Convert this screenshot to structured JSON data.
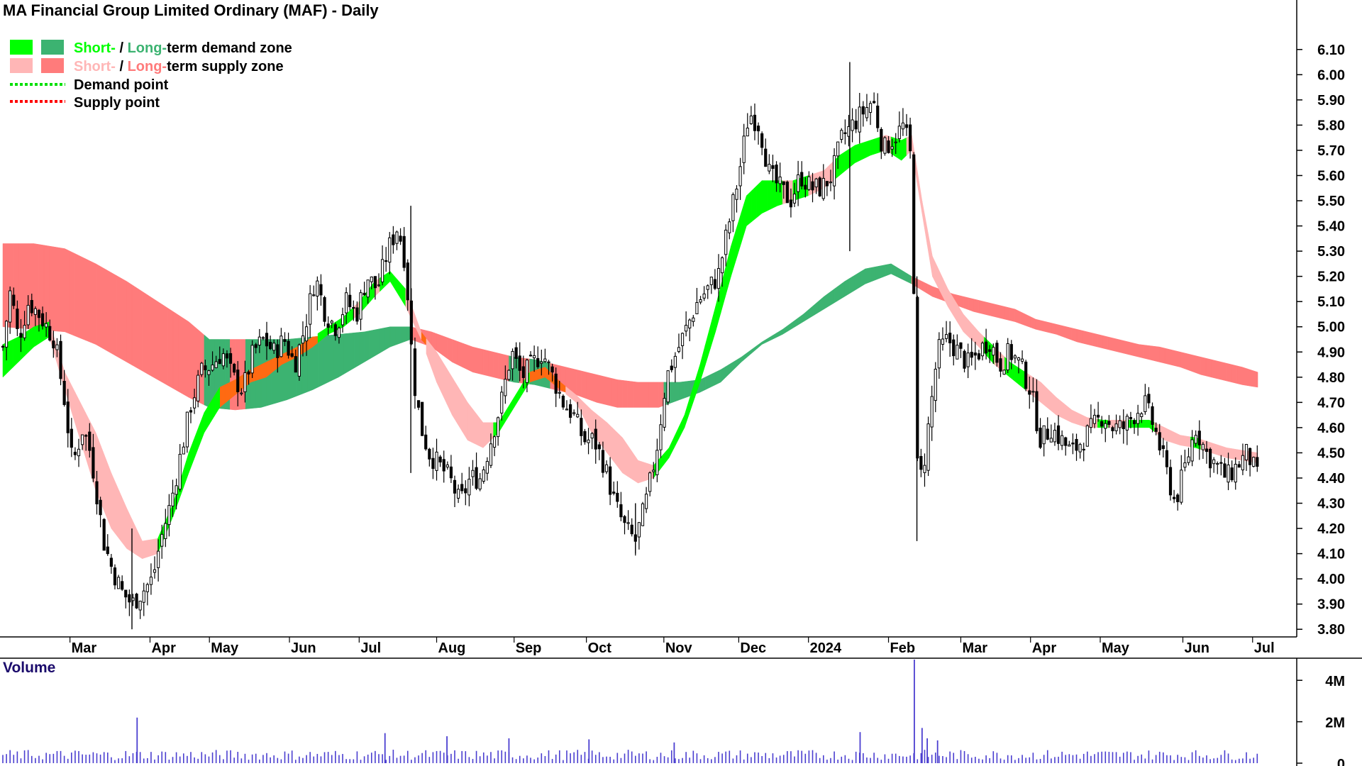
{
  "chart_data": {
    "type": "candlestick",
    "title": "MA Financial Group Limited Ordinary (MAF) - Daily",
    "legend": {
      "demand_zone": {
        "short_label": "Short-",
        "separator": " / ",
        "long_label": "Long-",
        "suffix": "term demand zone",
        "short_color": "#00ff00",
        "long_color": "#3cb371"
      },
      "supply_zone": {
        "short_label": "Short-",
        "separator": " / ",
        "long_label": "Long-",
        "suffix": "term supply zone",
        "short_color": "#ffb6b6",
        "long_color": "#ff7b7b"
      },
      "demand_point": {
        "label": "Demand point",
        "color": "#00e000"
      },
      "supply_point": {
        "label": "Supply point",
        "color": "#ff0000"
      },
      "placement": "top-left"
    },
    "price_axis": {
      "side": "right",
      "ticks": [
        "6.10",
        "6.00",
        "5.90",
        "5.80",
        "5.70",
        "5.60",
        "5.50",
        "5.40",
        "5.30",
        "5.20",
        "5.10",
        "5.00",
        "4.90",
        "4.80",
        "4.70",
        "4.60",
        "4.50",
        "4.40",
        "4.30",
        "4.20",
        "4.10",
        "4.00",
        "3.90",
        "3.80"
      ],
      "range": [
        3.75,
        6.15
      ]
    },
    "x_axis": {
      "months": [
        {
          "label": "Mar",
          "d": 26
        },
        {
          "label": "Apr",
          "d": 57
        },
        {
          "label": "May",
          "d": 80
        },
        {
          "label": "Jun",
          "d": 111
        },
        {
          "label": "Jul",
          "d": 138
        },
        {
          "label": "Aug",
          "d": 168
        },
        {
          "label": "Sep",
          "d": 198
        },
        {
          "label": "Oct",
          "d": 226
        },
        {
          "label": "Nov",
          "d": 256
        },
        {
          "label": "Dec",
          "d": 285
        },
        {
          "label": "2024",
          "d": 312
        },
        {
          "label": "Feb",
          "d": 343
        },
        {
          "label": "Mar",
          "d": 371
        },
        {
          "label": "Apr",
          "d": 398
        },
        {
          "label": "May",
          "d": 425
        },
        {
          "label": "Jun",
          "d": 457
        },
        {
          "label": "Jul",
          "d": 484
        }
      ],
      "range_days": [
        0,
        498
      ]
    },
    "close_anchors": [
      [
        0,
        4.92
      ],
      [
        3,
        5.15
      ],
      [
        6,
        4.95
      ],
      [
        10,
        5.1
      ],
      [
        14,
        5.05
      ],
      [
        20,
        4.95
      ],
      [
        24,
        4.7
      ],
      [
        27,
        4.45
      ],
      [
        31,
        4.6
      ],
      [
        34,
        4.5
      ],
      [
        37,
        4.3
      ],
      [
        39,
        4.15
      ],
      [
        42,
        4.05
      ],
      [
        46,
        3.95
      ],
      [
        50,
        3.9
      ],
      [
        54,
        3.95
      ],
      [
        58,
        4.0
      ],
      [
        61,
        4.15
      ],
      [
        65,
        4.3
      ],
      [
        69,
        4.5
      ],
      [
        73,
        4.7
      ],
      [
        77,
        4.82
      ],
      [
        81,
        4.85
      ],
      [
        85,
        4.9
      ],
      [
        89,
        4.8
      ],
      [
        93,
        4.75
      ],
      [
        97,
        4.9
      ],
      [
        101,
        4.95
      ],
      [
        105,
        4.9
      ],
      [
        109,
        4.95
      ],
      [
        113,
        4.85
      ],
      [
        117,
        5.0
      ],
      [
        121,
        5.2
      ],
      [
        125,
        5.05
      ],
      [
        129,
        5.0
      ],
      [
        133,
        5.1
      ],
      [
        137,
        5.05
      ],
      [
        141,
        5.2
      ],
      [
        145,
        5.15
      ],
      [
        149,
        5.3
      ],
      [
        153,
        5.4
      ],
      [
        156,
        5.25
      ],
      [
        159,
        4.8
      ],
      [
        162,
        4.6
      ],
      [
        165,
        4.5
      ],
      [
        169,
        4.45
      ],
      [
        173,
        4.4
      ],
      [
        177,
        4.3
      ],
      [
        181,
        4.4
      ],
      [
        185,
        4.4
      ],
      [
        189,
        4.55
      ],
      [
        193,
        4.7
      ],
      [
        197,
        4.9
      ],
      [
        201,
        4.8
      ],
      [
        205,
        4.85
      ],
      [
        209,
        4.9
      ],
      [
        213,
        4.8
      ],
      [
        217,
        4.7
      ],
      [
        221,
        4.65
      ],
      [
        225,
        4.55
      ],
      [
        229,
        4.55
      ],
      [
        233,
        4.45
      ],
      [
        237,
        4.3
      ],
      [
        241,
        4.2
      ],
      [
        245,
        4.15
      ],
      [
        249,
        4.3
      ],
      [
        253,
        4.5
      ],
      [
        257,
        4.8
      ],
      [
        261,
        4.9
      ],
      [
        265,
        5.0
      ],
      [
        269,
        5.1
      ],
      [
        273,
        5.15
      ],
      [
        277,
        5.2
      ],
      [
        281,
        5.4
      ],
      [
        285,
        5.6
      ],
      [
        289,
        5.85
      ],
      [
        293,
        5.8
      ],
      [
        297,
        5.6
      ],
      [
        301,
        5.55
      ],
      [
        305,
        5.5
      ],
      [
        309,
        5.6
      ],
      [
        313,
        5.55
      ],
      [
        317,
        5.55
      ],
      [
        321,
        5.6
      ],
      [
        325,
        5.75
      ],
      [
        329,
        5.8
      ],
      [
        333,
        5.85
      ],
      [
        337,
        5.9
      ],
      [
        341,
        5.7
      ],
      [
        345,
        5.75
      ],
      [
        349,
        5.8
      ],
      [
        352,
        5.65
      ],
      [
        354,
        4.45
      ],
      [
        356,
        4.4
      ],
      [
        359,
        4.65
      ],
      [
        362,
        4.9
      ],
      [
        366,
        4.95
      ],
      [
        370,
        4.9
      ],
      [
        374,
        4.85
      ],
      [
        378,
        4.9
      ],
      [
        382,
        4.95
      ],
      [
        386,
        4.85
      ],
      [
        390,
        4.9
      ],
      [
        394,
        4.85
      ],
      [
        398,
        4.75
      ],
      [
        402,
        4.55
      ],
      [
        406,
        4.6
      ],
      [
        410,
        4.55
      ],
      [
        414,
        4.5
      ],
      [
        418,
        4.55
      ],
      [
        422,
        4.6
      ],
      [
        426,
        4.65
      ],
      [
        430,
        4.6
      ],
      [
        434,
        4.6
      ],
      [
        438,
        4.65
      ],
      [
        442,
        4.7
      ],
      [
        446,
        4.6
      ],
      [
        450,
        4.45
      ],
      [
        454,
        4.3
      ],
      [
        458,
        4.45
      ],
      [
        462,
        4.6
      ],
      [
        466,
        4.5
      ],
      [
        470,
        4.45
      ],
      [
        474,
        4.4
      ],
      [
        478,
        4.45
      ],
      [
        482,
        4.5
      ],
      [
        486,
        4.4
      ]
    ],
    "zones": {
      "short_term": [
        [
          0,
          4.8,
          4.93
        ],
        [
          6,
          4.86,
          4.96
        ],
        [
          12,
          4.92,
          5.0
        ],
        [
          18,
          4.96,
          5.02
        ],
        [
          24,
          4.75,
          4.82
        ],
        [
          30,
          4.55,
          4.7
        ],
        [
          36,
          4.35,
          4.58
        ],
        [
          42,
          4.2,
          4.42
        ],
        [
          48,
          4.12,
          4.28
        ],
        [
          54,
          4.08,
          4.15
        ],
        [
          60,
          4.1,
          4.16
        ],
        [
          66,
          4.25,
          4.3
        ],
        [
          72,
          4.42,
          4.5
        ],
        [
          78,
          4.58,
          4.66
        ],
        [
          84,
          4.68,
          4.76
        ],
        [
          90,
          4.73,
          4.79
        ],
        [
          96,
          4.78,
          4.83
        ],
        [
          102,
          4.8,
          4.86
        ],
        [
          108,
          4.85,
          4.89
        ],
        [
          114,
          4.88,
          4.92
        ],
        [
          120,
          4.92,
          4.96
        ],
        [
          126,
          4.97,
          5.0
        ],
        [
          132,
          5.0,
          5.04
        ],
        [
          138,
          5.05,
          5.1
        ],
        [
          144,
          5.12,
          5.18
        ],
        [
          150,
          5.18,
          5.22
        ],
        [
          156,
          5.08,
          5.15
        ],
        [
          162,
          4.95,
          4.98
        ],
        [
          168,
          4.78,
          4.9
        ],
        [
          174,
          4.65,
          4.8
        ],
        [
          180,
          4.55,
          4.7
        ],
        [
          186,
          4.52,
          4.62
        ],
        [
          192,
          4.58,
          4.62
        ],
        [
          198,
          4.68,
          4.72
        ],
        [
          204,
          4.78,
          4.82
        ],
        [
          210,
          4.8,
          4.84
        ],
        [
          216,
          4.75,
          4.78
        ],
        [
          222,
          4.7,
          4.73
        ],
        [
          228,
          4.58,
          4.67
        ],
        [
          234,
          4.5,
          4.62
        ],
        [
          240,
          4.42,
          4.56
        ],
        [
          246,
          4.38,
          4.47
        ],
        [
          252,
          4.4,
          4.45
        ],
        [
          258,
          4.48,
          4.52
        ],
        [
          264,
          4.6,
          4.65
        ],
        [
          270,
          4.78,
          4.85
        ],
        [
          276,
          4.98,
          5.08
        ],
        [
          282,
          5.2,
          5.32
        ],
        [
          288,
          5.4,
          5.52
        ],
        [
          294,
          5.45,
          5.58
        ],
        [
          300,
          5.48,
          5.58
        ],
        [
          306,
          5.5,
          5.58
        ],
        [
          312,
          5.52,
          5.6
        ],
        [
          318,
          5.55,
          5.62
        ],
        [
          324,
          5.6,
          5.68
        ],
        [
          330,
          5.65,
          5.72
        ],
        [
          336,
          5.68,
          5.74
        ],
        [
          342,
          5.7,
          5.76
        ],
        [
          348,
          5.66,
          5.74
        ],
        [
          352,
          5.7,
          5.76
        ],
        [
          356,
          5.45,
          5.5
        ],
        [
          360,
          5.2,
          5.28
        ],
        [
          366,
          5.08,
          5.15
        ],
        [
          372,
          4.98,
          5.05
        ],
        [
          378,
          4.92,
          4.98
        ],
        [
          384,
          4.85,
          4.92
        ],
        [
          390,
          4.8,
          4.86
        ],
        [
          396,
          4.75,
          4.82
        ],
        [
          402,
          4.7,
          4.78
        ],
        [
          408,
          4.65,
          4.72
        ],
        [
          414,
          4.62,
          4.67
        ],
        [
          420,
          4.6,
          4.64
        ],
        [
          426,
          4.6,
          4.63
        ],
        [
          432,
          4.6,
          4.63
        ],
        [
          438,
          4.6,
          4.63
        ],
        [
          444,
          4.6,
          4.63
        ],
        [
          450,
          4.55,
          4.6
        ],
        [
          456,
          4.53,
          4.57
        ],
        [
          462,
          4.52,
          4.56
        ],
        [
          468,
          4.5,
          4.54
        ],
        [
          474,
          4.48,
          4.52
        ],
        [
          480,
          4.47,
          4.51
        ],
        [
          486,
          4.46,
          4.5
        ]
      ],
      "long_term": [
        [
          0,
          5.0,
          5.33
        ],
        [
          12,
          4.99,
          5.33
        ],
        [
          24,
          4.98,
          5.31
        ],
        [
          36,
          4.93,
          5.25
        ],
        [
          48,
          4.86,
          5.18
        ],
        [
          60,
          4.79,
          5.1
        ],
        [
          72,
          4.72,
          5.02
        ],
        [
          80,
          4.68,
          4.95
        ],
        [
          90,
          4.67,
          4.95
        ],
        [
          100,
          4.68,
          4.95
        ],
        [
          110,
          4.71,
          4.95
        ],
        [
          120,
          4.75,
          4.96
        ],
        [
          130,
          4.8,
          4.97
        ],
        [
          140,
          4.86,
          4.98
        ],
        [
          150,
          4.92,
          5.0
        ],
        [
          158,
          4.95,
          5.0
        ],
        [
          166,
          4.92,
          4.98
        ],
        [
          174,
          4.86,
          4.95
        ],
        [
          182,
          4.82,
          4.92
        ],
        [
          190,
          4.8,
          4.9
        ],
        [
          198,
          4.78,
          4.88
        ],
        [
          206,
          4.77,
          4.87
        ],
        [
          214,
          4.75,
          4.85
        ],
        [
          222,
          4.73,
          4.83
        ],
        [
          230,
          4.7,
          4.81
        ],
        [
          238,
          4.68,
          4.79
        ],
        [
          246,
          4.68,
          4.78
        ],
        [
          254,
          4.68,
          4.78
        ],
        [
          262,
          4.71,
          4.78
        ],
        [
          270,
          4.74,
          4.79
        ],
        [
          278,
          4.78,
          4.83
        ],
        [
          286,
          4.86,
          4.88
        ],
        [
          294,
          4.93,
          4.94
        ],
        [
          302,
          4.97,
          4.99
        ],
        [
          310,
          5.02,
          5.05
        ],
        [
          318,
          5.07,
          5.12
        ],
        [
          326,
          5.12,
          5.18
        ],
        [
          334,
          5.17,
          5.23
        ],
        [
          344,
          5.21,
          5.25
        ],
        [
          352,
          5.17,
          5.2
        ],
        [
          360,
          5.12,
          5.16
        ],
        [
          368,
          5.09,
          5.13
        ],
        [
          376,
          5.06,
          5.11
        ],
        [
          384,
          5.04,
          5.09
        ],
        [
          392,
          5.02,
          5.07
        ],
        [
          400,
          4.99,
          5.03
        ],
        [
          408,
          4.97,
          5.01
        ],
        [
          416,
          4.94,
          4.99
        ],
        [
          424,
          4.92,
          4.97
        ],
        [
          432,
          4.9,
          4.95
        ],
        [
          440,
          4.88,
          4.93
        ],
        [
          448,
          4.86,
          4.92
        ],
        [
          456,
          4.84,
          4.9
        ],
        [
          464,
          4.81,
          4.88
        ],
        [
          472,
          4.79,
          4.86
        ],
        [
          480,
          4.77,
          4.84
        ],
        [
          486,
          4.76,
          4.82
        ]
      ],
      "colors": {
        "short_demand": "#00ff00",
        "short_supply": "#ffb6b6",
        "long_demand": "#3cb371",
        "long_supply": "#ff7b7b",
        "overlap": "#ff6a12"
      }
    },
    "volume": {
      "title": "Volume",
      "ticks": [
        "4M",
        "2M",
        "0"
      ],
      "range": [
        0,
        5000000
      ],
      "bar_color": "#4a3ed0",
      "spikes": [
        {
          "d": 52,
          "v": 2200000
        },
        {
          "d": 148,
          "v": 1450000
        },
        {
          "d": 172,
          "v": 1300000
        },
        {
          "d": 196,
          "v": 1200000
        },
        {
          "d": 227,
          "v": 1150000
        },
        {
          "d": 260,
          "v": 1000000
        },
        {
          "d": 332,
          "v": 1500000
        },
        {
          "d": 353,
          "v": 5600000
        },
        {
          "d": 356,
          "v": 1700000
        },
        {
          "d": 358,
          "v": 1200000
        },
        {
          "d": 362,
          "v": 1100000
        }
      ]
    }
  }
}
